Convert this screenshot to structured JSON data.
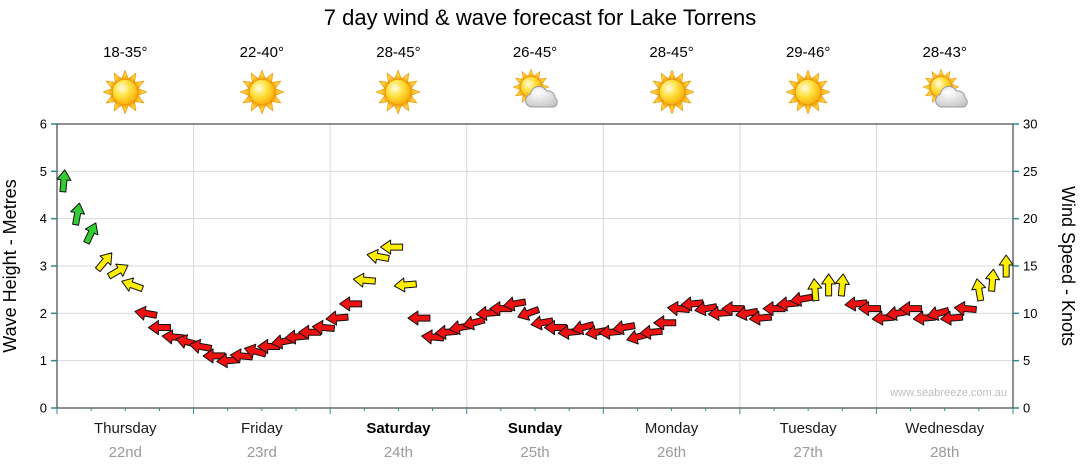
{
  "title": "7 day wind & wave forecast for Lake Torrens",
  "watermark": "www.seabreeze.com.au",
  "colors": {
    "green": "#33cc33",
    "yellow": "#ffee00",
    "red": "#ee1111",
    "grid": "#d9d9d9",
    "tick": "#2e8b8b",
    "border": "#222222",
    "arrow_outline": "#111111",
    "day_label": "#1a1a1a",
    "date_label": "#9a9a9a",
    "watermark_color": "#bdbdbd"
  },
  "chart_data": {
    "type": "wind-arrows",
    "title": "7 day wind & wave forecast for Lake Torrens",
    "left_axis": {
      "label": "Wave Height - Metres",
      "min": 0,
      "max": 6,
      "ticks": [
        0,
        1,
        2,
        3,
        4,
        5,
        6
      ]
    },
    "right_axis": {
      "label": "Wind Speed - Knots",
      "min": 0,
      "max": 30,
      "ticks": [
        0,
        5,
        10,
        15,
        20,
        25,
        30
      ]
    },
    "grid": true,
    "legend": "none",
    "days": [
      {
        "name": "Thursday",
        "date": "22nd",
        "temp": "18-35°",
        "icon": "sunny",
        "weekend": false
      },
      {
        "name": "Friday",
        "date": "23rd",
        "temp": "22-40°",
        "icon": "sunny",
        "weekend": false
      },
      {
        "name": "Saturday",
        "date": "24th",
        "temp": "28-45°",
        "icon": "sunny",
        "weekend": true
      },
      {
        "name": "Sunday",
        "date": "25th",
        "temp": "26-45°",
        "icon": "partly-cloudy",
        "weekend": true
      },
      {
        "name": "Monday",
        "date": "26th",
        "temp": "28-45°",
        "icon": "sunny",
        "weekend": false
      },
      {
        "name": "Tuesday",
        "date": "27th",
        "temp": "29-46°",
        "icon": "sunny",
        "weekend": false
      },
      {
        "name": "Wednesday",
        "date": "28th",
        "temp": "28-43°",
        "icon": "partly-cloudy",
        "weekend": false
      }
    ],
    "points_per_day": 10,
    "color_thresholds": {
      "green_min_knots": 18,
      "yellow_min_knots": 12.5
    },
    "series": [
      {
        "name": "Wind Speed",
        "units": "knots",
        "values": [
          24,
          20.5,
          18.5,
          15.5,
          14.5,
          13,
          10,
          8.5,
          7.5,
          7,
          6.5,
          5.5,
          5,
          5.5,
          6,
          6.5,
          7,
          7.5,
          8,
          8.5,
          9.5,
          11,
          13.5,
          16,
          17,
          13,
          9.5,
          7.5,
          8,
          8.5,
          9,
          10,
          10.5,
          11,
          10,
          9,
          8.5,
          8,
          8.5,
          8,
          8,
          8.5,
          7.5,
          8,
          9,
          10.5,
          11,
          10.5,
          10,
          10.5,
          10,
          9.5,
          10.5,
          11,
          11.5,
          12.5,
          13,
          13,
          11,
          10.5,
          9.5,
          10,
          10.5,
          9.5,
          10,
          9.5,
          10.5,
          12.5,
          13.5,
          15
        ],
        "directions_deg": [
          5,
          10,
          25,
          40,
          60,
          290,
          280,
          270,
          275,
          285,
          280,
          270,
          265,
          275,
          285,
          270,
          260,
          265,
          270,
          275,
          265,
          270,
          275,
          280,
          270,
          265,
          270,
          275,
          265,
          260,
          255,
          265,
          270,
          260,
          250,
          260,
          270,
          265,
          255,
          260,
          265,
          260,
          255,
          265,
          270,
          275,
          265,
          260,
          265,
          270,
          260,
          265,
          270,
          265,
          260,
          355,
          0,
          5,
          265,
          270,
          265,
          260,
          270,
          265,
          255,
          265,
          275,
          350,
          5,
          0
        ]
      }
    ]
  }
}
